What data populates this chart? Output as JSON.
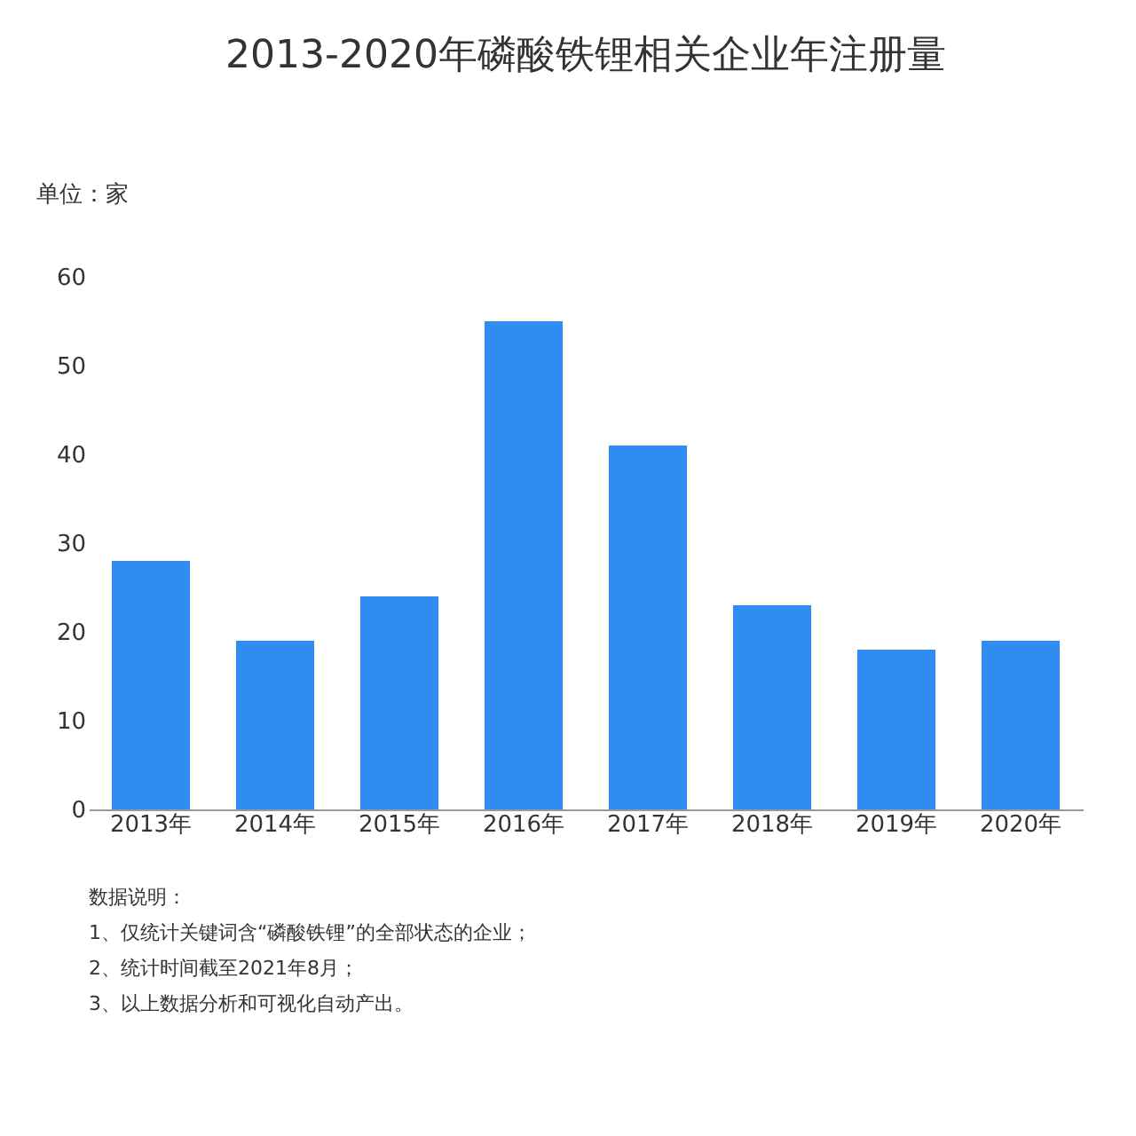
{
  "chart_data": {
    "type": "bar",
    "title": "2013-2020年磷酸铁锂相关企业年注册量",
    "ylabel": "单位：家",
    "categories": [
      "2013年",
      "2014年",
      "2015年",
      "2016年",
      "2017年",
      "2018年",
      "2019年",
      "2020年"
    ],
    "values": [
      28,
      19,
      24,
      55,
      41,
      23,
      18,
      19
    ],
    "color": "#2f8cf0",
    "ylim": [
      0,
      60
    ],
    "yticks": [
      0,
      10,
      20,
      30,
      40,
      50,
      60
    ],
    "grid": false,
    "annotations": [
      "数据说明：",
      "1、仅统计关键词含“磷酸铁锂”的全部状态的企业；",
      "2、统计时间截至2021年8月；",
      "3、以上数据分析和可视化自动产出。"
    ]
  }
}
